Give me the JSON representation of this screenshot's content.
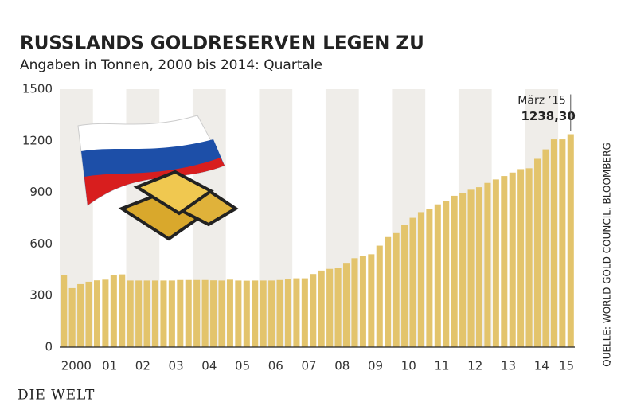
{
  "chart_data": {
    "type": "bar",
    "title": "RUSSLANDS GOLDRESERVEN LEGEN ZU",
    "subtitle": "Angaben in Tonnen, 2000 bis 2014: Quartale",
    "source": "QUELLE: WORLD GOLD COUNCIL, BLOOMBERG",
    "logo": "DIE WELT",
    "color": "#e3c46c",
    "stripe_color": "#efede9",
    "year_labels": [
      "2000",
      "01",
      "02",
      "03",
      "04",
      "05",
      "06",
      "07",
      "08",
      "09",
      "10",
      "11",
      "12",
      "13",
      "14",
      "15"
    ],
    "values": [
      421,
      343,
      366,
      380,
      388,
      392,
      420,
      423,
      387,
      387,
      387,
      387,
      387,
      387,
      390,
      390,
      390,
      390,
      388,
      387,
      392,
      387,
      386,
      387,
      387,
      387,
      390,
      397,
      400,
      400,
      425,
      445,
      455,
      460,
      490,
      517,
      530,
      540,
      590,
      640,
      663,
      710,
      752,
      785,
      805,
      830,
      850,
      880,
      895,
      915,
      930,
      955,
      975,
      995,
      1015,
      1035,
      1040,
      1095,
      1150,
      1208,
      1208,
      1238.3
    ],
    "value_labels": [
      null,
      null,
      null,
      null,
      null,
      null,
      null,
      null,
      null,
      null,
      null,
      null,
      null,
      null,
      null,
      null,
      null,
      null,
      null,
      null,
      null,
      null,
      null,
      null,
      null,
      null,
      null,
      null,
      null,
      null,
      null,
      null,
      null,
      null,
      null,
      null,
      null,
      null,
      null,
      null,
      null,
      null,
      null,
      null,
      null,
      null,
      null,
      null,
      null,
      null,
      null,
      null,
      null,
      null,
      null,
      null,
      null,
      null,
      null,
      null,
      null,
      "1238,30"
    ],
    "annotation": "März ’15",
    "ylim": [
      0,
      1500
    ],
    "yticks": [
      0,
      300,
      600,
      900,
      1200,
      1500
    ]
  }
}
